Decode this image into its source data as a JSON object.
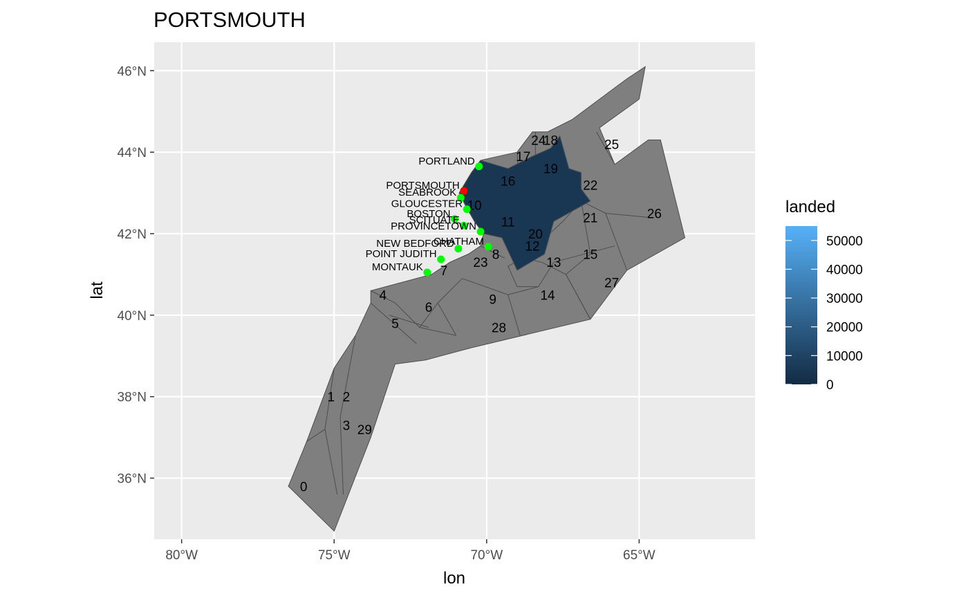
{
  "chart_data": {
    "type": "choropleth-map",
    "title": "PORTSMOUTH",
    "xlabel": "lon",
    "ylabel": "lat",
    "xlim": [
      -80.9,
      -61.2
    ],
    "ylim": [
      34.5,
      46.7
    ],
    "x_ticks": [
      {
        "value": -80,
        "label": "80°W"
      },
      {
        "value": -75,
        "label": "75°W"
      },
      {
        "value": -70,
        "label": "70°W"
      },
      {
        "value": -65,
        "label": "65°W"
      }
    ],
    "y_ticks": [
      {
        "value": 36,
        "label": "36°N"
      },
      {
        "value": 38,
        "label": "38°N"
      },
      {
        "value": 40,
        "label": "40°N"
      },
      {
        "value": 42,
        "label": "42°N"
      },
      {
        "value": 44,
        "label": "44°N"
      },
      {
        "value": 46,
        "label": "46°N"
      }
    ],
    "grid": true,
    "panel_background": "#ebebeb",
    "outline_color": "#4d4d4d",
    "na_fill": "#7f7f7f",
    "legend": {
      "title": "landed",
      "position": "right",
      "min": 0,
      "max": 55000,
      "low_color": "#132b43",
      "high_color": "#56b1f7",
      "breaks": [
        0,
        10000,
        20000,
        30000,
        40000,
        50000
      ],
      "labels": [
        "0",
        "10000",
        "20000",
        "30000",
        "40000",
        "50000"
      ]
    },
    "region_outline": [
      [
        -76.5,
        35.8
      ],
      [
        -75.9,
        36.9
      ],
      [
        -75.0,
        38.7
      ],
      [
        -74.3,
        39.5
      ],
      [
        -73.8,
        40.3
      ],
      [
        -73.8,
        40.6
      ],
      [
        -71.8,
        41.0
      ],
      [
        -71.2,
        41.3
      ],
      [
        -70.6,
        41.5
      ],
      [
        -70.2,
        41.7
      ],
      [
        -70.1,
        42.0
      ],
      [
        -70.4,
        42.3
      ],
      [
        -70.7,
        42.7
      ],
      [
        -70.9,
        43.0
      ],
      [
        -70.5,
        43.5
      ],
      [
        -70.2,
        43.8
      ],
      [
        -69.0,
        44.0
      ],
      [
        -68.5,
        44.5
      ],
      [
        -68.0,
        44.5
      ],
      [
        -67.2,
        44.8
      ],
      [
        -65.4,
        45.8
      ],
      [
        -64.8,
        46.1
      ],
      [
        -65.0,
        45.3
      ],
      [
        -66.3,
        44.6
      ],
      [
        -65.8,
        43.7
      ],
      [
        -64.7,
        44.3
      ],
      [
        -64.3,
        44.3
      ],
      [
        -63.5,
        41.9
      ],
      [
        -65.4,
        41.1
      ],
      [
        -66.6,
        39.9
      ],
      [
        -70.5,
        39.2
      ],
      [
        -72.0,
        38.9
      ],
      [
        -73.0,
        38.8
      ],
      [
        -73.8,
        37.0
      ],
      [
        -75.0,
        34.7
      ]
    ],
    "zone_edges": [
      [
        [
          -75.9,
          36.9
        ],
        [
          -75.3,
          37.2
        ],
        [
          -74.9,
          35.6
        ]
      ],
      [
        [
          -75.0,
          38.7
        ],
        [
          -75.3,
          37.2
        ]
      ],
      [
        [
          -74.3,
          39.5
        ],
        [
          -74.8,
          37.5
        ],
        [
          -74.7,
          35.6
        ]
      ],
      [
        [
          -73.8,
          40.3
        ],
        [
          -72.3,
          39.3
        ]
      ],
      [
        [
          -73.2,
          40.0
        ],
        [
          -71.9,
          39.7
        ]
      ],
      [
        [
          -73.8,
          40.6
        ],
        [
          -73.0,
          40.3
        ],
        [
          -72.2,
          39.7
        ],
        [
          -71.6,
          40.3
        ]
      ],
      [
        [
          -72.2,
          39.7
        ],
        [
          -71.0,
          39.5
        ]
      ],
      [
        [
          -71.6,
          40.3
        ],
        [
          -71.0,
          39.5
        ]
      ],
      [
        [
          -71.6,
          40.3
        ],
        [
          -70.8,
          40.9
        ]
      ],
      [
        [
          -70.8,
          40.9
        ],
        [
          -69.3,
          40.5
        ],
        [
          -68.3,
          40.7
        ],
        [
          -67.8,
          41.3
        ]
      ],
      [
        [
          -67.8,
          41.3
        ],
        [
          -65.8,
          41.7
        ]
      ],
      [
        [
          -70.2,
          41.7
        ],
        [
          -69.4,
          41.4
        ]
      ],
      [
        [
          -69.3,
          40.5
        ],
        [
          -68.9,
          39.5
        ]
      ],
      [
        [
          -69.0,
          44.0
        ],
        [
          -68.8,
          41.4
        ]
      ],
      [
        [
          -70.7,
          42.7
        ],
        [
          -69.6,
          42.6
        ],
        [
          -68.8,
          41.4
        ]
      ],
      [
        [
          -68.8,
          41.4
        ],
        [
          -69.3,
          41.2
        ],
        [
          -69.0,
          40.7
        ]
      ],
      [
        [
          -69.0,
          40.7
        ],
        [
          -68.3,
          40.7
        ]
      ],
      [
        [
          -68.8,
          41.4
        ],
        [
          -67.5,
          42.3
        ],
        [
          -66.9,
          42.8
        ]
      ],
      [
        [
          -66.9,
          42.8
        ],
        [
          -66.6,
          41.5
        ],
        [
          -67.4,
          41.0
        ]
      ],
      [
        [
          -68.8,
          41.4
        ],
        [
          -68.2,
          41.3
        ],
        [
          -67.4,
          41.0
        ],
        [
          -66.6,
          39.9
        ]
      ],
      [
        [
          -68.4,
          44.5
        ],
        [
          -68.4,
          43.0
        ],
        [
          -66.9,
          42.8
        ]
      ],
      [
        [
          -66.9,
          42.8
        ],
        [
          -66.1,
          42.5
        ],
        [
          -65.4,
          41.1
        ]
      ],
      [
        [
          -66.1,
          42.5
        ],
        [
          -64.7,
          42.4
        ]
      ],
      [
        [
          -66.4,
          44.5
        ],
        [
          -65.8,
          43.7
        ]
      ],
      [
        [
          -67.4,
          41.0
        ],
        [
          -66.6,
          39.9
        ]
      ]
    ],
    "zones_filled": [
      {
        "id": "dark-zone",
        "value": 5000,
        "polygon": [
          [
            -70.9,
            43.0
          ],
          [
            -70.5,
            43.5
          ],
          [
            -70.2,
            43.8
          ],
          [
            -69.3,
            43.6
          ],
          [
            -68.5,
            43.9
          ],
          [
            -67.9,
            44.1
          ],
          [
            -67.6,
            44.4
          ],
          [
            -67.3,
            43.6
          ],
          [
            -66.9,
            43.5
          ],
          [
            -66.9,
            43.1
          ],
          [
            -66.6,
            42.8
          ],
          [
            -67.8,
            42.3
          ],
          [
            -68.1,
            41.5
          ],
          [
            -69.0,
            41.1
          ],
          [
            -69.5,
            41.9
          ],
          [
            -70.1,
            42.0
          ],
          [
            -70.4,
            42.3
          ],
          [
            -70.7,
            42.7
          ]
        ]
      }
    ],
    "zone_labels": [
      {
        "id": "0",
        "lon": -76.0,
        "lat": 35.8
      },
      {
        "id": "1",
        "lon": -75.1,
        "lat": 38.0
      },
      {
        "id": "2",
        "lon": -74.6,
        "lat": 38.0
      },
      {
        "id": "3",
        "lon": -74.6,
        "lat": 37.3
      },
      {
        "id": "29",
        "lon": -74.0,
        "lat": 37.2
      },
      {
        "id": "4",
        "lon": -73.4,
        "lat": 40.5
      },
      {
        "id": "5",
        "lon": -73.0,
        "lat": 39.8
      },
      {
        "id": "6",
        "lon": -71.9,
        "lat": 40.2
      },
      {
        "id": "7",
        "lon": -71.4,
        "lat": 41.1
      },
      {
        "id": "8",
        "lon": -69.7,
        "lat": 41.5
      },
      {
        "id": "9",
        "lon": -69.8,
        "lat": 40.4
      },
      {
        "id": "10",
        "lon": -70.4,
        "lat": 42.7
      },
      {
        "id": "11",
        "lon": -69.3,
        "lat": 42.3
      },
      {
        "id": "12",
        "lon": -68.5,
        "lat": 41.7
      },
      {
        "id": "13",
        "lon": -67.8,
        "lat": 41.3
      },
      {
        "id": "14",
        "lon": -68.0,
        "lat": 40.5
      },
      {
        "id": "15",
        "lon": -66.6,
        "lat": 41.5
      },
      {
        "id": "16",
        "lon": -69.3,
        "lat": 43.3
      },
      {
        "id": "17",
        "lon": -68.8,
        "lat": 43.9
      },
      {
        "id": "18",
        "lon": -67.9,
        "lat": 44.3
      },
      {
        "id": "19",
        "lon": -67.9,
        "lat": 43.6
      },
      {
        "id": "20",
        "lon": -68.4,
        "lat": 42.0
      },
      {
        "id": "21",
        "lon": -66.6,
        "lat": 42.4
      },
      {
        "id": "22",
        "lon": -66.6,
        "lat": 43.2
      },
      {
        "id": "23",
        "lon": -70.2,
        "lat": 41.3
      },
      {
        "id": "24",
        "lon": -68.3,
        "lat": 44.3
      },
      {
        "id": "25",
        "lon": -65.9,
        "lat": 44.2
      },
      {
        "id": "26",
        "lon": -64.5,
        "lat": 42.5
      },
      {
        "id": "27",
        "lon": -65.9,
        "lat": 40.8
      },
      {
        "id": "28",
        "lon": -69.6,
        "lat": 39.7
      }
    ],
    "ports": [
      {
        "name": "PORTLAND",
        "lon": -70.25,
        "lat": 43.65,
        "highlight": false
      },
      {
        "name": "PORTSMOUTH",
        "lon": -70.75,
        "lat": 43.05,
        "highlight": true
      },
      {
        "name": "SEABROOK",
        "lon": -70.85,
        "lat": 42.88,
        "highlight": false
      },
      {
        "name": "GLOUCESTER",
        "lon": -70.65,
        "lat": 42.6,
        "highlight": false
      },
      {
        "name": "BOSTON",
        "lon": -71.05,
        "lat": 42.36,
        "highlight": false
      },
      {
        "name": "SCITUATE",
        "lon": -70.75,
        "lat": 42.2,
        "highlight": false
      },
      {
        "name": "PROVINCETOWN",
        "lon": -70.2,
        "lat": 42.05,
        "highlight": false
      },
      {
        "name": "CHATHAM",
        "lon": -69.95,
        "lat": 41.68,
        "highlight": false
      },
      {
        "name": "NEW BEDFORD",
        "lon": -70.93,
        "lat": 41.63,
        "highlight": false
      },
      {
        "name": "POINT JUDITH",
        "lon": -71.5,
        "lat": 41.37,
        "highlight": false
      },
      {
        "name": "MONTAUK",
        "lon": -71.95,
        "lat": 41.05,
        "highlight": false
      }
    ],
    "port_color": "#00ff00",
    "highlight_color": "#ff0000"
  }
}
